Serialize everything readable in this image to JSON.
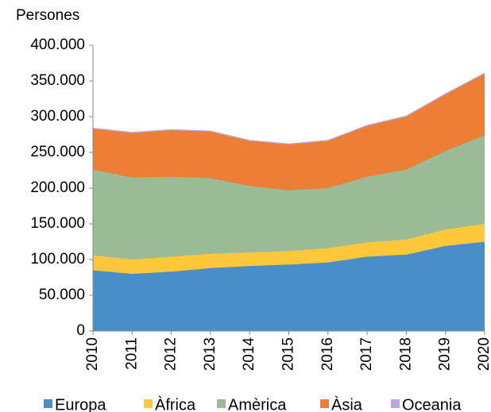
{
  "chart_data": {
    "type": "stacked_area",
    "y_label": "Persones",
    "categories": [
      "2010",
      "2011",
      "2012",
      "2013",
      "2014",
      "2015",
      "2016",
      "2017",
      "2018",
      "2019",
      "2020"
    ],
    "series": [
      {
        "name": "Europa",
        "color": "#4a8ec8",
        "values": [
          85000,
          80000,
          83000,
          88000,
          91000,
          93000,
          96000,
          104000,
          107000,
          119000,
          125000
        ]
      },
      {
        "name": "Àfrica",
        "color": "#ffc83a",
        "values": [
          21000,
          20000,
          21000,
          20000,
          19000,
          19000,
          20000,
          20000,
          21000,
          23000,
          25000
        ]
      },
      {
        "name": "Amèrica",
        "color": "#9bbb96",
        "values": [
          120000,
          115000,
          112000,
          106000,
          93000,
          85000,
          84000,
          92000,
          98000,
          110000,
          124000
        ]
      },
      {
        "name": "Àsia",
        "color": "#ed7e35",
        "values": [
          57000,
          62000,
          65000,
          65000,
          63000,
          64000,
          66000,
          71000,
          74000,
          79000,
          86000
        ]
      },
      {
        "name": "Oceania",
        "color": "#b8a7d8",
        "values": [
          1000,
          1000,
          1000,
          1000,
          1000,
          1000,
          1000,
          1000,
          1000,
          1000,
          1000
        ]
      }
    ],
    "ylim": [
      0,
      400000
    ],
    "yticks": [
      0,
      {
        "value": 50000,
        "label": "50.000"
      },
      {
        "value": 100000,
        "label": "100.000"
      },
      {
        "value": 150000,
        "label": "150.000"
      },
      {
        "value": 200000,
        "label": "200.000"
      },
      {
        "value": 250000,
        "label": "250.000"
      },
      {
        "value": 300000,
        "label": "300.000"
      },
      {
        "value": 350000,
        "label": "350.000"
      },
      {
        "value": 400000,
        "label": "400.000"
      }
    ],
    "grid": false
  }
}
